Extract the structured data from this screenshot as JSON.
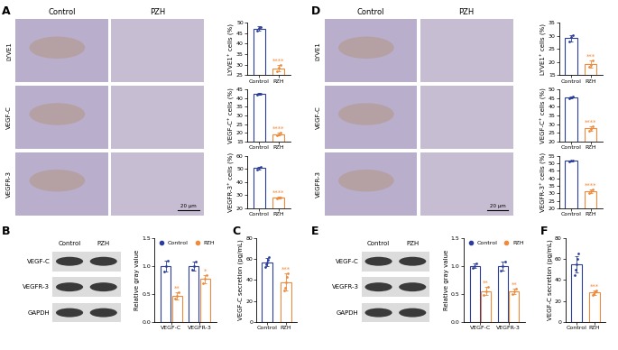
{
  "panel_labels": [
    "A",
    "B",
    "C",
    "D",
    "E",
    "F"
  ],
  "micrographs": {
    "columns": [
      "Control",
      "PZH"
    ],
    "rows": [
      "LYVE1",
      "VEGF-C",
      "VEGFR-3"
    ],
    "scale_bar": "20 μm"
  },
  "blots": {
    "columns": [
      "Control",
      "PZH"
    ],
    "rows": [
      "VEGF-C",
      "VEGFR-3",
      "GAPDH"
    ]
  },
  "chart_data": [
    {
      "type": "bar",
      "ylabel": "LYVE1⁺ cells (%)",
      "categories": [
        "Control",
        "PZH"
      ],
      "colors": [
        "#2c3e9c",
        "#f08a3c"
      ],
      "values": [
        47.2,
        28.3
      ],
      "errors": [
        1.0,
        1.6
      ],
      "points": [
        [
          46.3,
          47.5,
          47.9
        ],
        [
          26.8,
          28.5,
          29.7
        ]
      ],
      "ylim": [
        25,
        50
      ],
      "yticks": [
        25,
        30,
        35,
        40,
        45,
        50
      ],
      "annotations": [
        {
          "category": "PZH",
          "text": "****"
        }
      ]
    },
    {
      "type": "bar",
      "ylabel": "VEGF-C⁺ cells (%)",
      "categories": [
        "Control",
        "PZH"
      ],
      "colors": [
        "#2c3e9c",
        "#f08a3c"
      ],
      "values": [
        42.2,
        19.3
      ],
      "errors": [
        0.5,
        0.8
      ],
      "points": [
        [
          41.7,
          42.3,
          42.6
        ],
        [
          18.5,
          19.4,
          20.0
        ]
      ],
      "ylim": [
        15,
        45
      ],
      "yticks": [
        15,
        20,
        25,
        30,
        35,
        40,
        45
      ],
      "annotations": [
        {
          "category": "PZH",
          "text": "****"
        }
      ]
    },
    {
      "type": "bar",
      "ylabel": "VEGFR-3⁺ cells (%)",
      "categories": [
        "Control",
        "PZH"
      ],
      "colors": [
        "#2c3e9c",
        "#f08a3c"
      ],
      "values": [
        50.8,
        27.9
      ],
      "errors": [
        1.0,
        0.6
      ],
      "points": [
        [
          49.8,
          50.9,
          51.7
        ],
        [
          27.3,
          28.0,
          28.4
        ]
      ],
      "ylim": [
        20,
        60
      ],
      "yticks": [
        20,
        30,
        40,
        50,
        60
      ],
      "annotations": [
        {
          "category": "PZH",
          "text": "****"
        }
      ]
    },
    {
      "type": "grouped_bar",
      "ylabel": "Relative gray value",
      "categories": [
        "VEGF-C",
        "VEGFR-3"
      ],
      "legend": "upper center",
      "marker": "o",
      "series": [
        {
          "name": "Control",
          "color": "#2c3e9c",
          "values": [
            1.0,
            1.0
          ],
          "errors": [
            0.1,
            0.08
          ],
          "points": [
            [
              0.9,
              1.0,
              1.1
            ],
            [
              0.93,
              1.0,
              1.08
            ]
          ]
        },
        {
          "name": "PZH",
          "color": "#f08a3c",
          "values": [
            0.47,
            0.77
          ],
          "errors": [
            0.06,
            0.07
          ],
          "points": [
            [
              0.42,
              0.46,
              0.53
            ],
            [
              0.7,
              0.77,
              0.84
            ]
          ],
          "annotations": [
            "**",
            "*"
          ]
        }
      ],
      "ylim": [
        0,
        1.5
      ],
      "yticks": [
        {
          "value": 0,
          "label": "0.0"
        },
        {
          "value": 0.5,
          "label": "0.5"
        },
        {
          "value": 1,
          "label": "1.0"
        },
        {
          "value": 1.5,
          "label": "1.5"
        }
      ]
    },
    {
      "type": "bar",
      "ylabel": "VEGF-C secretion (pg/mL)",
      "categories": [
        "Control",
        "PZH"
      ],
      "colors": [
        "#2c3e9c",
        "#f08a3c"
      ],
      "values": [
        57,
        38
      ],
      "errors": [
        4,
        8
      ],
      "points": [
        [
          52,
          55,
          57,
          59,
          62
        ],
        [
          30,
          33,
          38,
          43,
          46
        ]
      ],
      "ylim": [
        0,
        80
      ],
      "yticks": [
        0,
        20,
        40,
        60,
        80
      ],
      "annotations": [
        {
          "category": "PZH",
          "text": "***"
        }
      ]
    },
    {
      "type": "bar",
      "ylabel": "LYVE1⁺ cells (%)",
      "categories": [
        "Control",
        "PZH"
      ],
      "colors": [
        "#2c3e9c",
        "#f08a3c"
      ],
      "values": [
        29.2,
        19.3
      ],
      "errors": [
        1.2,
        1.3
      ],
      "points": [
        [
          28.0,
          29.5,
          30.3
        ],
        [
          18.2,
          19.0,
          20.8
        ]
      ],
      "ylim": [
        15,
        35
      ],
      "yticks": [
        15,
        20,
        25,
        30,
        35
      ],
      "annotations": [
        {
          "category": "PZH",
          "text": "***"
        }
      ]
    },
    {
      "type": "bar",
      "ylabel": "VEGF-C⁺ cells (%)",
      "categories": [
        "Control",
        "PZH"
      ],
      "colors": [
        "#2c3e9c",
        "#f08a3c"
      ],
      "values": [
        45.4,
        27.6
      ],
      "errors": [
        0.6,
        1.4
      ],
      "points": [
        [
          44.9,
          45.4,
          46.0
        ],
        [
          26.3,
          27.5,
          29.0
        ]
      ],
      "ylim": [
        20,
        50
      ],
      "yticks": [
        20,
        25,
        30,
        35,
        40,
        45,
        50
      ],
      "annotations": [
        {
          "category": "PZH",
          "text": "****"
        }
      ]
    },
    {
      "type": "bar",
      "ylabel": "VEGFR-3⁺ cells (%)",
      "categories": [
        "Control",
        "PZH"
      ],
      "colors": [
        "#2c3e9c",
        "#f08a3c"
      ],
      "values": [
        51.5,
        31.3
      ],
      "errors": [
        0.2,
        1.0
      ],
      "points": [
        [
          51.3,
          51.5,
          51.7
        ],
        [
          30.4,
          31.2,
          32.3
        ]
      ],
      "ylim": [
        20,
        55
      ],
      "yticks": [
        20,
        25,
        30,
        35,
        40,
        45,
        50,
        55
      ],
      "annotations": [
        {
          "category": "PZH",
          "text": "****"
        }
      ]
    },
    {
      "type": "grouped_bar",
      "ylabel": "Relative gray value",
      "categories": [
        "VEGF-C",
        "VEGFR-3"
      ],
      "legend": "upper center",
      "marker": "o",
      "series": [
        {
          "name": "Control",
          "color": "#2c3e9c",
          "values": [
            1.0,
            1.0
          ],
          "errors": [
            0.04,
            0.08
          ],
          "points": [
            [
              0.96,
              1.0,
              1.04
            ],
            [
              0.92,
              1.0,
              1.08
            ]
          ]
        },
        {
          "name": "PZH",
          "color": "#f08a3c",
          "values": [
            0.55,
            0.55
          ],
          "errors": [
            0.07,
            0.05
          ],
          "points": [
            [
              0.48,
              0.55,
              0.62
            ],
            [
              0.5,
              0.55,
              0.6
            ]
          ],
          "annotations": [
            "**",
            "**"
          ]
        }
      ],
      "ylim": [
        0,
        1.5
      ],
      "yticks": [
        {
          "value": 0,
          "label": "0.0"
        },
        {
          "value": 0.5,
          "label": "0.5"
        },
        {
          "value": 1,
          "label": "1.0"
        },
        {
          "value": 1.5,
          "label": "1.5"
        }
      ]
    },
    {
      "type": "bar",
      "ylabel": "VEGF-C secretion (pg/mL)",
      "categories": [
        "Control",
        "PZH"
      ],
      "colors": [
        "#2c3e9c",
        "#f08a3c"
      ],
      "values": [
        55,
        28
      ],
      "errors": [
        8,
        2
      ],
      "points": [
        [
          45,
          50,
          55,
          60,
          65
        ],
        [
          26,
          27,
          28,
          29,
          30
        ]
      ],
      "ylim": [
        0,
        80
      ],
      "yticks": [
        0,
        20,
        40,
        60,
        80
      ],
      "annotations": [
        {
          "category": "PZH",
          "text": "***"
        }
      ]
    }
  ]
}
